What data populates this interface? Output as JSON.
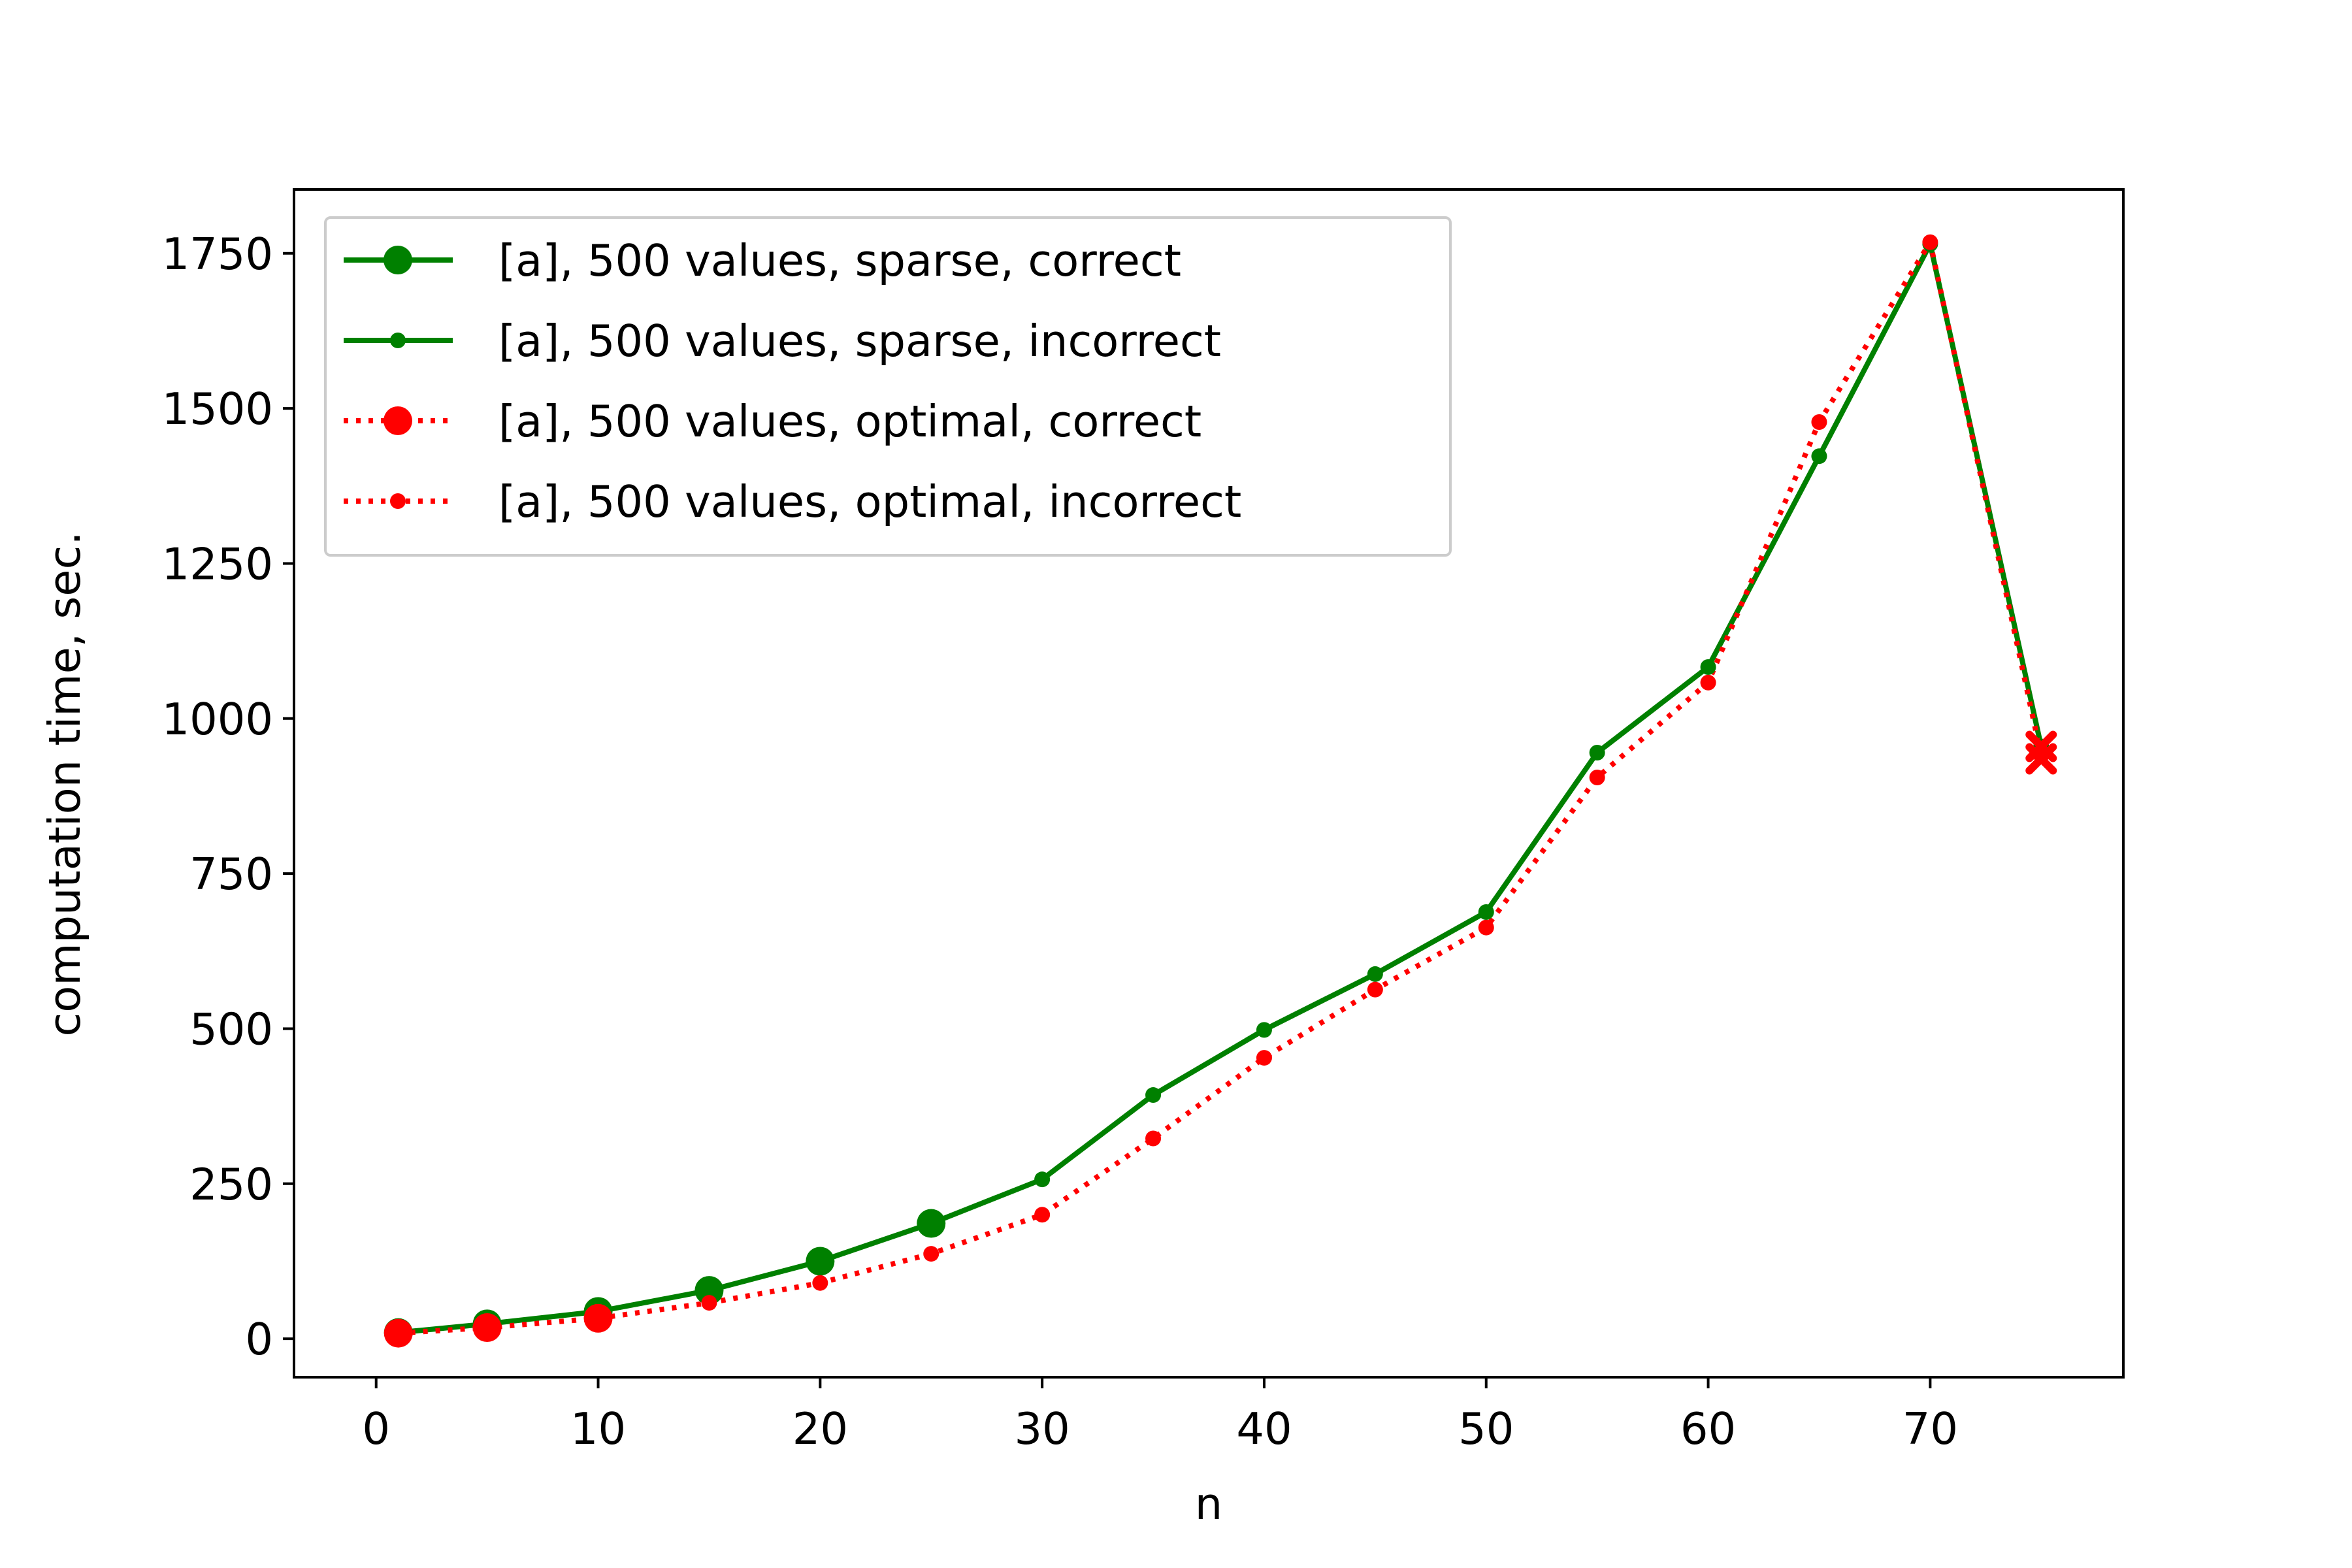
{
  "chart_data": {
    "type": "line",
    "title": "",
    "xlabel": "n",
    "ylabel": "computation time, sec.",
    "xlim": [
      -3.7,
      78.7
    ],
    "ylim": [
      -62,
      1853
    ],
    "xticks": [
      0,
      10,
      20,
      30,
      40,
      50,
      60,
      70
    ],
    "xtick_labels": [
      "0",
      "10",
      "20",
      "30",
      "40",
      "50",
      "60",
      "70"
    ],
    "yticks": [
      0,
      250,
      500,
      750,
      1000,
      1250,
      1500,
      1750
    ],
    "ytick_labels": [
      "0",
      "250",
      "500",
      "750",
      "1000",
      "1250",
      "1500",
      "1750"
    ],
    "grid": false,
    "legend_position": "top-left",
    "series": [
      {
        "name": "[a], 500 values, sparse, correct",
        "color": "#008000",
        "line": "solid",
        "marker": "large-dot",
        "x": [
          1,
          5,
          10,
          15,
          20,
          25
        ],
        "y": [
          10,
          24,
          44,
          78,
          125,
          186
        ]
      },
      {
        "name": "[a], 500 values, sparse, incorrect",
        "color": "#008000",
        "line": "solid",
        "marker": "small-dot",
        "x": [
          25,
          30,
          35,
          40,
          45,
          50,
          55,
          60,
          65,
          70,
          75
        ],
        "y": [
          186,
          257,
          393,
          498,
          588,
          688,
          945,
          1083,
          1423,
          1765,
          955
        ]
      },
      {
        "name": "[a], 500 values, optimal, correct",
        "color": "#ff0000",
        "line": "dotted",
        "marker": "large-dot",
        "x": [
          1,
          5,
          10
        ],
        "y": [
          9,
          18,
          33
        ]
      },
      {
        "name": "[a], 500 values, optimal, incorrect",
        "color": "#ff0000",
        "line": "dotted",
        "marker": "small-dot",
        "x": [
          10,
          15,
          20,
          25,
          30,
          35,
          40,
          45,
          50,
          55,
          60,
          65,
          70,
          75
        ],
        "y": [
          33,
          58,
          90,
          137,
          200,
          323,
          453,
          563,
          663,
          905,
          1058,
          1478,
          1768,
          940
        ]
      }
    ],
    "extra_markers": {
      "color": "#ff0000",
      "marker": "cross",
      "x": [
        75,
        75
      ],
      "y": [
        935,
        955
      ]
    }
  }
}
